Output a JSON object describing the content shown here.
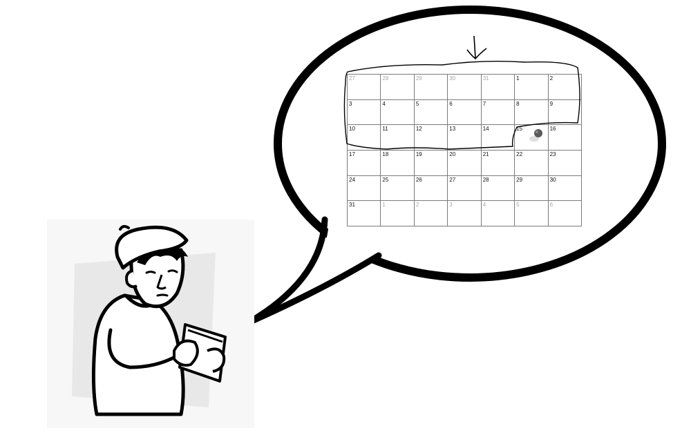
{
  "calendar": {
    "days": [
      {
        "label": "27",
        "muted": true
      },
      {
        "label": "28",
        "muted": true
      },
      {
        "label": "29",
        "muted": true
      },
      {
        "label": "30",
        "muted": true
      },
      {
        "label": "31",
        "muted": true
      },
      {
        "label": "1",
        "muted": false
      },
      {
        "label": "2",
        "muted": false
      },
      {
        "label": "3",
        "muted": false
      },
      {
        "label": "4",
        "muted": false
      },
      {
        "label": "5",
        "muted": false
      },
      {
        "label": "6",
        "muted": false
      },
      {
        "label": "7",
        "muted": false
      },
      {
        "label": "8",
        "muted": false
      },
      {
        "label": "9",
        "muted": false
      },
      {
        "label": "10",
        "muted": false
      },
      {
        "label": "11",
        "muted": false
      },
      {
        "label": "12",
        "muted": false
      },
      {
        "label": "13",
        "muted": false
      },
      {
        "label": "14",
        "muted": false
      },
      {
        "label": "15",
        "muted": false
      },
      {
        "label": "16",
        "muted": false
      },
      {
        "label": "17",
        "muted": false
      },
      {
        "label": "18",
        "muted": false
      },
      {
        "label": "19",
        "muted": false
      },
      {
        "label": "20",
        "muted": false
      },
      {
        "label": "21",
        "muted": false
      },
      {
        "label": "22",
        "muted": false
      },
      {
        "label": "23",
        "muted": false
      },
      {
        "label": "24",
        "muted": false
      },
      {
        "label": "25",
        "muted": false
      },
      {
        "label": "26",
        "muted": false
      },
      {
        "label": "27",
        "muted": false
      },
      {
        "label": "28",
        "muted": false
      },
      {
        "label": "29",
        "muted": false
      },
      {
        "label": "30",
        "muted": false
      },
      {
        "label": "31",
        "muted": false
      },
      {
        "label": "1",
        "muted": true
      },
      {
        "label": "2",
        "muted": true
      },
      {
        "label": "3",
        "muted": true
      },
      {
        "label": "4",
        "muted": true
      },
      {
        "label": "5",
        "muted": true
      },
      {
        "label": "6",
        "muted": true
      }
    ],
    "pinned_day": "15"
  },
  "colors": {
    "ink": "#000000",
    "grid_line": "#7a7a7a",
    "muted_text": "#a6a6a6",
    "pin": "#4a4a4a",
    "paper_shadow": "#e6e6e6"
  }
}
